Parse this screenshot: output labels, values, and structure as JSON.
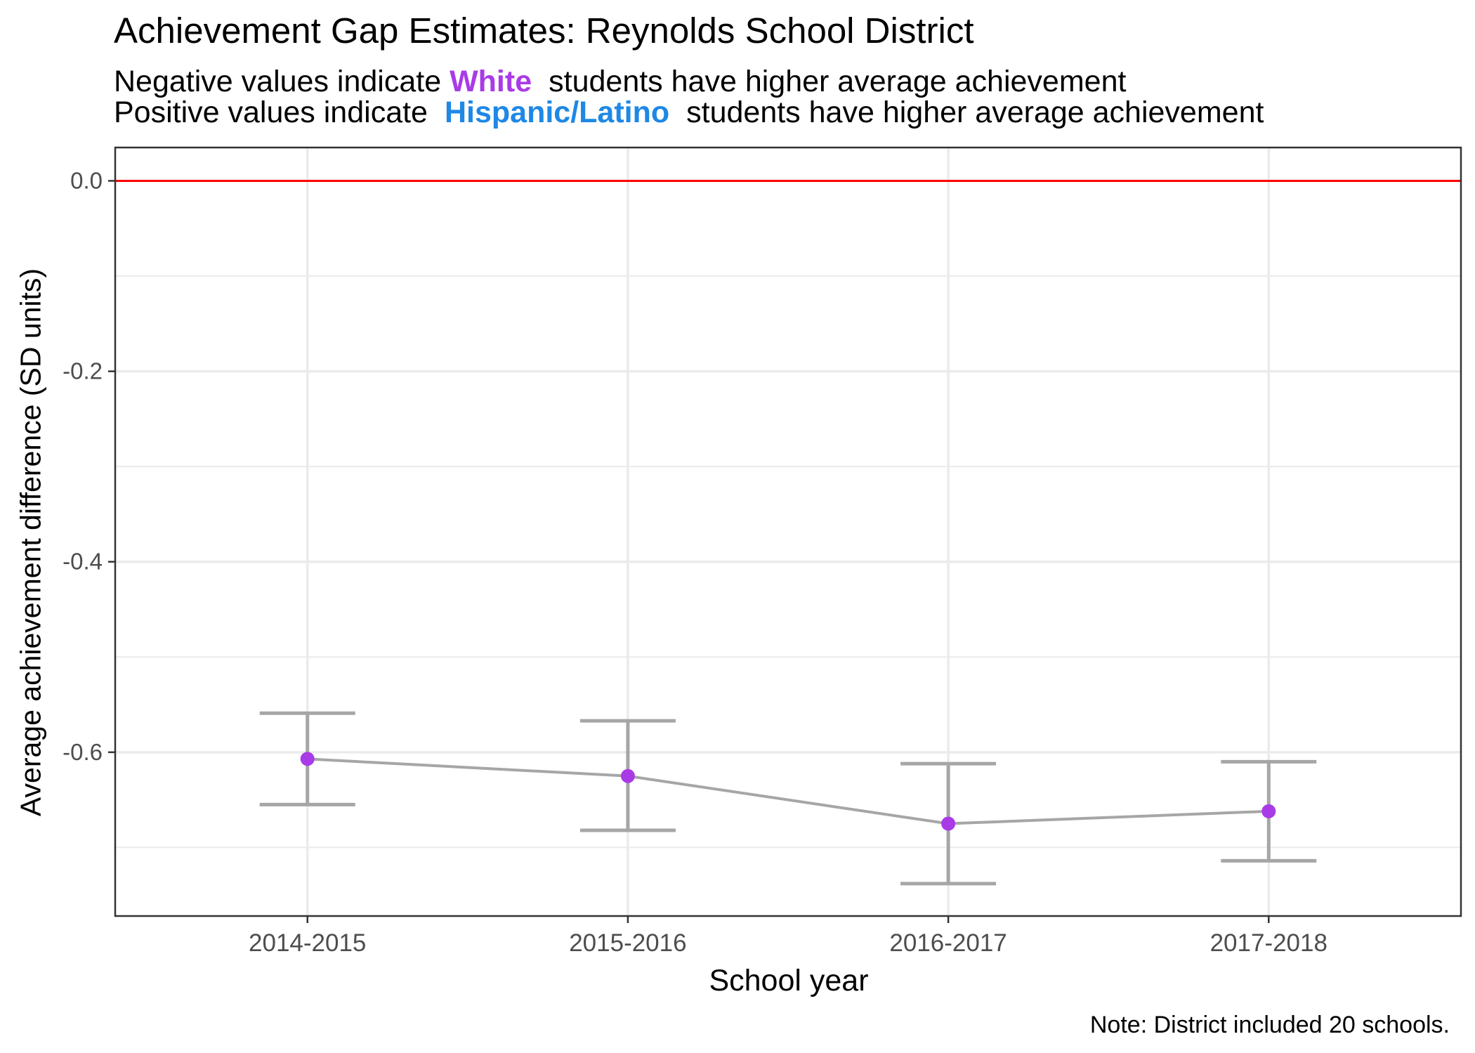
{
  "chart_data": {
    "type": "line",
    "title": "Achievement Gap Estimates: Reynolds School District",
    "subtitle": {
      "line1": {
        "before": "Negative values indicate",
        "highlight": "White",
        "after": "students have higher average achievement"
      },
      "line2": {
        "before": "Positive values indicate",
        "highlight": "Hispanic/Latino",
        "after": "students have higher average achievement"
      }
    },
    "xlabel": "School year",
    "ylabel": "Average achievement difference (SD units)",
    "caption": "Note: District included 20 schools.",
    "categories": [
      "2014-2015",
      "2015-2016",
      "2016-2017",
      "2017-2018"
    ],
    "series": [
      {
        "values": [
          -0.607,
          -0.625,
          -0.675,
          -0.662
        ],
        "lower": [
          -0.655,
          -0.682,
          -0.738,
          -0.714
        ],
        "upper": [
          -0.559,
          -0.567,
          -0.612,
          -0.61
        ]
      }
    ],
    "ylim": [
      -0.772,
      0.035
    ],
    "yticks": [
      0.0,
      -0.2,
      -0.4,
      -0.6
    ],
    "ytick_labels": [
      "0.0",
      "-0.2",
      "-0.4",
      "-0.6"
    ],
    "minor_grid": [
      -0.1,
      -0.3,
      -0.5,
      -0.7
    ],
    "reference_line": 0.0,
    "grid": true,
    "colors": {
      "point": "#A93BE7",
      "line": "#A6A6A6",
      "errorbar": "#A6A6A6",
      "reference": "#FF0000",
      "white_label": "#A93BE7",
      "hispanic_label": "#1E88E5",
      "grid": "#EBEBEB"
    }
  }
}
